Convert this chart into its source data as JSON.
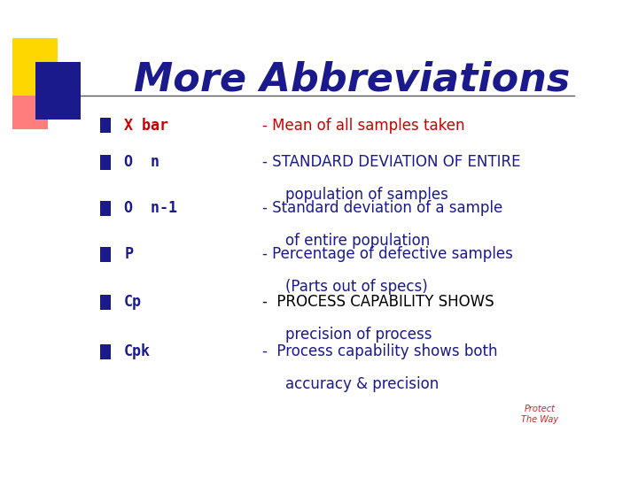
{
  "title": "More Abbreviations",
  "title_color": "#1a1a8c",
  "title_fontsize": 32,
  "background_color": "#ffffff",
  "bullet_color": "#1a1a8c",
  "bullet_items": [
    {
      "term": "X bar",
      "term_color": "#cc0000",
      "definition": "- Mean of all samples taken",
      "def_color": "#cc0000",
      "continuation": null,
      "cont_color": null
    },
    {
      "term": "O  n",
      "term_color": "#1a1a8c",
      "definition": "- STANDARD DEVIATION OF ENTIRE",
      "def_color": "#1a1a8c",
      "continuation": "population of samples",
      "cont_color": "#1a1a8c"
    },
    {
      "term": "O  n-1",
      "term_color": "#1a1a8c",
      "definition": "- Standard deviation of a sample",
      "def_color": "#1a1a8c",
      "continuation": "of entire population",
      "cont_color": "#1a1a8c"
    },
    {
      "term": "P",
      "term_color": "#1a1a8c",
      "definition": "- Percentage of defective samples",
      "def_color": "#1a1a8c",
      "continuation": "(Parts out of specs)",
      "cont_color": "#1a1a8c"
    },
    {
      "term": "Cp",
      "term_color": "#1a1a8c",
      "definition": "-  PROCESS CAPABILITY SHOWS",
      "def_color": "#000000",
      "continuation": "precision of process",
      "cont_color": "#1a1a8c"
    },
    {
      "term": "Cpk",
      "term_color": "#1a1a8c",
      "definition": "-  Process capability shows both",
      "def_color": "#1a1a8c",
      "continuation": "accuracy & precision",
      "cont_color": "#1a1a8c"
    }
  ]
}
